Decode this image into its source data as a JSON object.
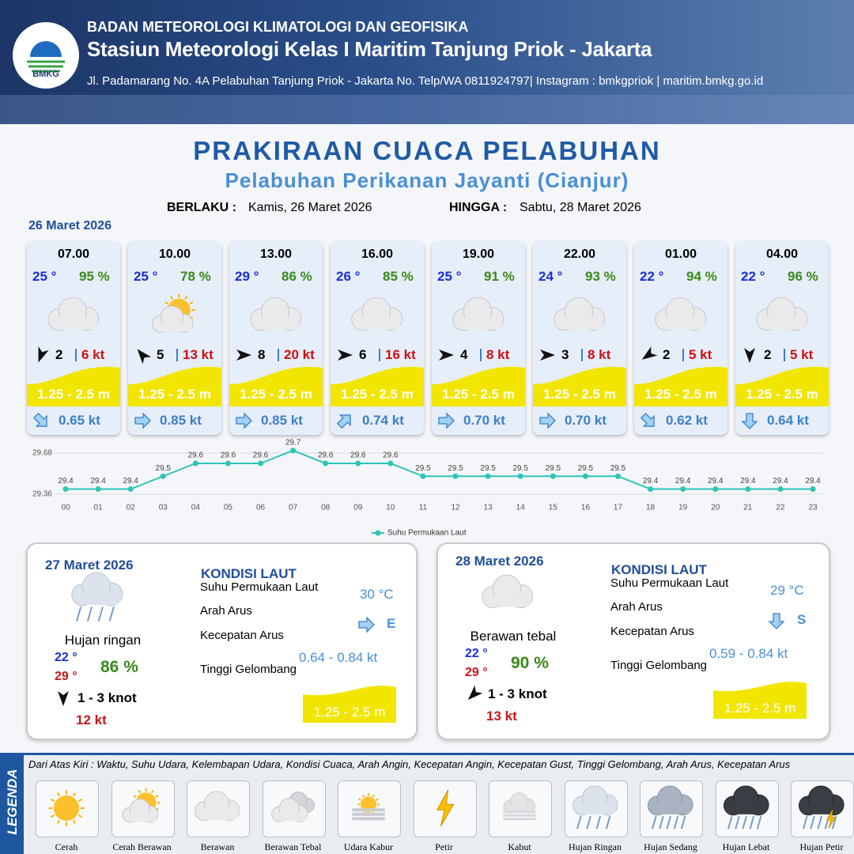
{
  "header": {
    "logo": "BMKG",
    "agency": "BADAN METEOROLOGI KLIMATOLOGI DAN GEOFISIKA",
    "station": "Stasiun Meteorologi Kelas I Maritim Tanjung Priok - Jakarta",
    "address": "Jl. Padamarang No. 4A Pelabuhan Tanjung Priok - Jakarta No. Telp/WA 0811924797| Instagram : bmkgpriok | maritim.bmkg.go.id"
  },
  "title": "PRAKIRAAN CUACA PELABUHAN",
  "subtitle": "Pelabuhan Perikanan Jayanti (Cianjur)",
  "validity": {
    "from_label": "BERLAKU :",
    "from": "Kamis, 26 Maret 2026",
    "to_label": "HINGGA :",
    "to": "Sabtu, 28 Maret 2026"
  },
  "today": {
    "date": "26 Maret 2026",
    "forecasts": [
      {
        "time": "07.00",
        "temperature": "25 °",
        "humidity": "95 %",
        "wind_speed": "2",
        "gust": "6 kt",
        "wave": "1.25 - 2.5 m",
        "current_speed": "0.65 kt"
      },
      {
        "time": "10.00",
        "temperature": "25 °",
        "humidity": "78 %",
        "wind_speed": "5",
        "gust": "13 kt",
        "wave": "1.25 - 2.5 m",
        "current_speed": "0.85 kt"
      },
      {
        "time": "13.00",
        "temperature": "29 °",
        "humidity": "86 %",
        "wind_speed": "8",
        "gust": "20 kt",
        "wave": "1.25 - 2.5 m",
        "current_speed": "0.85 kt"
      },
      {
        "time": "16.00",
        "temperature": "26 °",
        "humidity": "85 %",
        "wind_speed": "6",
        "gust": "16 kt",
        "wave": "1.25 - 2.5 m",
        "current_speed": "0.74 kt"
      },
      {
        "time": "19.00",
        "temperature": "25 °",
        "humidity": "91 %",
        "wind_speed": "4",
        "gust": "8 kt",
        "wave": "1.25 - 2.5 m",
        "current_speed": "0.70 kt"
      },
      {
        "time": "22.00",
        "temperature": "24 °",
        "humidity": "93 %",
        "wind_speed": "3",
        "gust": "8 kt",
        "wave": "1.25 - 2.5 m",
        "current_speed": "0.70 kt"
      },
      {
        "time": "01.00",
        "temperature": "22 °",
        "humidity": "94 %",
        "wind_speed": "2",
        "gust": "5 kt",
        "wave": "1.25 - 2.5 m",
        "current_speed": "0.62 kt"
      },
      {
        "time": "04.00",
        "temperature": "22 °",
        "humidity": "96 %",
        "wind_speed": "2",
        "gust": "5 kt",
        "wave": "1.25 - 2.5 m",
        "current_speed": "0.64 kt"
      }
    ]
  },
  "chart_data": {
    "type": "line",
    "categories": [
      "00",
      "01",
      "02",
      "03",
      "04",
      "05",
      "06",
      "07",
      "08",
      "09",
      "10",
      "11",
      "12",
      "13",
      "14",
      "15",
      "16",
      "17",
      "18",
      "19",
      "20",
      "21",
      "22",
      "23"
    ],
    "series": [
      {
        "name": "Suhu Permukaan Laut",
        "color": "#2ec4b6",
        "values": [
          29.4,
          29.4,
          29.4,
          29.5,
          29.6,
          29.6,
          29.6,
          29.7,
          29.6,
          29.6,
          29.6,
          29.5,
          29.5,
          29.5,
          29.5,
          29.5,
          29.5,
          29.5,
          29.4,
          29.4,
          29.4,
          29.4,
          29.4,
          29.4
        ]
      }
    ],
    "ylim": [
      29.36,
      29.68
    ],
    "yticks": [
      29.36,
      29.68
    ],
    "grid": true,
    "legend": "bottom"
  },
  "days": [
    {
      "date": "27 Maret 2026",
      "condition": "Hujan ringan",
      "temp_min": "22 °",
      "temp_max": "29 °",
      "humidity": "86 %",
      "wind": "1  - 3 knot",
      "gust": "12 kt",
      "sea_title": "KONDISI LAUT",
      "sst_label": "Suhu Permukaan Laut",
      "sst": "30 °C",
      "current_dir_label": "Arah Arus",
      "current_dir": "E",
      "current_speed_label": "Kecepatan Arus",
      "current_speed": "0.64  - 0.84 kt",
      "wave_label": "Tinggi Gelombang",
      "wave": "1.25 - 2.5 m"
    },
    {
      "date": "28 Maret 2026",
      "condition": "Berawan tebal",
      "temp_min": "22 °",
      "temp_max": "29 °",
      "humidity": "90 %",
      "wind": "1  - 3 knot",
      "gust": "13 kt",
      "sea_title": "KONDISI LAUT",
      "sst_label": "Suhu Permukaan Laut",
      "sst": "29 °C",
      "current_dir_label": "Arah Arus",
      "current_dir": "S",
      "current_speed_label": "Kecepatan Arus",
      "current_speed": "0.59 - 0.84 kt",
      "wave_label": "Tinggi Gelombang",
      "wave": "1.25 - 2.5 m"
    }
  ],
  "legend": {
    "title": "LEGENDA",
    "description": "Dari Atas Kiri : Waktu, Suhu Udara, Kelembapan Udara, Kondisi Cuaca, Arah Angin, Kecepatan Angin, Kecepatan Gust, Tinggi Gelombang, Arah Arus, Kecepatan Arus",
    "items": [
      "Cerah",
      "Cerah Berawan",
      "Berawan",
      "Berawan Tebal",
      "Udara Kabur",
      "Petir",
      "Kabut",
      "Hujan Ringan",
      "Hujan Sedang",
      "Hujan Lebat",
      "Hujan Petir"
    ]
  }
}
